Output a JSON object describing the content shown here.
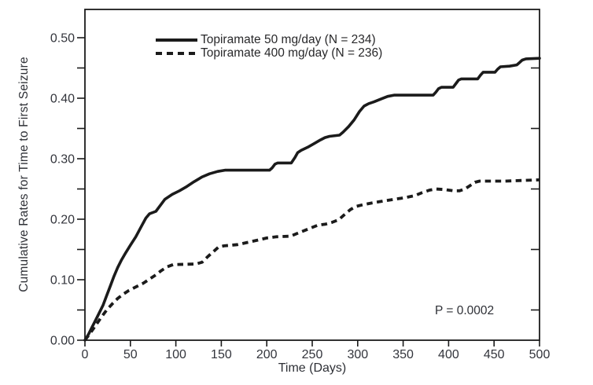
{
  "chart_data": {
    "type": "line",
    "title": "",
    "xlabel": "Time (Days)",
    "ylabel": "Cumulative Rates for Time to First Seizure",
    "xlim": [
      0,
      500
    ],
    "ylim": [
      0.0,
      0.5
    ],
    "x_ticks": [
      0,
      50,
      100,
      150,
      200,
      250,
      300,
      350,
      400,
      450,
      500
    ],
    "y_ticks_major": [
      0.0,
      0.1,
      0.2,
      0.3,
      0.4,
      0.5
    ],
    "y_ticks_minor": [
      0.05,
      0.15,
      0.25,
      0.35,
      0.45
    ],
    "grid": false,
    "frame": "full-box",
    "legend_position": "top-inside-left",
    "line_color": "#1b1b1b",
    "annotation": {
      "text": "P = 0.0002",
      "x_day": 385,
      "y_rate": 0.047
    },
    "series": [
      {
        "name": "Topiramate 50 mg/day (N = 234)",
        "style": "solid",
        "color": "#1b1b1b",
        "points": [
          [
            0,
            0
          ],
          [
            4,
            0.01
          ],
          [
            8,
            0.022
          ],
          [
            12,
            0.034
          ],
          [
            16,
            0.046
          ],
          [
            20,
            0.058
          ],
          [
            24,
            0.074
          ],
          [
            28,
            0.09
          ],
          [
            32,
            0.106
          ],
          [
            36,
            0.12
          ],
          [
            40,
            0.132
          ],
          [
            45,
            0.145
          ],
          [
            50,
            0.157
          ],
          [
            56,
            0.171
          ],
          [
            62,
            0.188
          ],
          [
            67,
            0.202
          ],
          [
            71,
            0.209
          ],
          [
            78,
            0.213
          ],
          [
            82,
            0.221
          ],
          [
            88,
            0.233
          ],
          [
            96,
            0.241
          ],
          [
            104,
            0.247
          ],
          [
            112,
            0.254
          ],
          [
            120,
            0.262
          ],
          [
            129,
            0.27
          ],
          [
            137,
            0.275
          ],
          [
            146,
            0.279
          ],
          [
            154,
            0.281
          ],
          [
            203,
            0.281
          ],
          [
            206,
            0.285
          ],
          [
            209,
            0.291
          ],
          [
            212,
            0.293
          ],
          [
            227,
            0.293
          ],
          [
            231,
            0.302
          ],
          [
            234,
            0.31
          ],
          [
            238,
            0.314
          ],
          [
            245,
            0.319
          ],
          [
            252,
            0.325
          ],
          [
            259,
            0.331
          ],
          [
            264,
            0.335
          ],
          [
            269,
            0.337
          ],
          [
            280,
            0.339
          ],
          [
            284,
            0.344
          ],
          [
            290,
            0.353
          ],
          [
            296,
            0.364
          ],
          [
            302,
            0.378
          ],
          [
            307,
            0.387
          ],
          [
            312,
            0.391
          ],
          [
            318,
            0.394
          ],
          [
            326,
            0.399
          ],
          [
            333,
            0.403
          ],
          [
            340,
            0.405
          ],
          [
            383,
            0.405
          ],
          [
            386,
            0.41
          ],
          [
            389,
            0.416
          ],
          [
            392,
            0.418
          ],
          [
            405,
            0.418
          ],
          [
            408,
            0.424
          ],
          [
            411,
            0.43
          ],
          [
            414,
            0.432
          ],
          [
            432,
            0.432
          ],
          [
            435,
            0.438
          ],
          [
            438,
            0.443
          ],
          [
            451,
            0.443
          ],
          [
            454,
            0.448
          ],
          [
            457,
            0.452
          ],
          [
            467,
            0.453
          ],
          [
            475,
            0.455
          ],
          [
            478,
            0.459
          ],
          [
            481,
            0.463
          ],
          [
            485,
            0.465
          ],
          [
            500,
            0.466
          ]
        ]
      },
      {
        "name": "Topiramate 400 mg/day (N = 236)",
        "style": "dashed",
        "color": "#1b1b1b",
        "points": [
          [
            0,
            0
          ],
          [
            6,
            0.012
          ],
          [
            12,
            0.025
          ],
          [
            18,
            0.038
          ],
          [
            24,
            0.05
          ],
          [
            30,
            0.06
          ],
          [
            36,
            0.069
          ],
          [
            42,
            0.076
          ],
          [
            48,
            0.082
          ],
          [
            56,
            0.088
          ],
          [
            64,
            0.094
          ],
          [
            71,
            0.101
          ],
          [
            78,
            0.108
          ],
          [
            84,
            0.115
          ],
          [
            90,
            0.121
          ],
          [
            97,
            0.125
          ],
          [
            122,
            0.126
          ],
          [
            129,
            0.129
          ],
          [
            135,
            0.138
          ],
          [
            141,
            0.146
          ],
          [
            147,
            0.154
          ],
          [
            153,
            0.156
          ],
          [
            168,
            0.158
          ],
          [
            177,
            0.161
          ],
          [
            189,
            0.165
          ],
          [
            200,
            0.169
          ],
          [
            211,
            0.171
          ],
          [
            226,
            0.172
          ],
          [
            236,
            0.178
          ],
          [
            246,
            0.184
          ],
          [
            256,
            0.19
          ],
          [
            265,
            0.192
          ],
          [
            272,
            0.195
          ],
          [
            279,
            0.199
          ],
          [
            285,
            0.207
          ],
          [
            292,
            0.216
          ],
          [
            298,
            0.221
          ],
          [
            306,
            0.224
          ],
          [
            316,
            0.227
          ],
          [
            328,
            0.23
          ],
          [
            341,
            0.233
          ],
          [
            353,
            0.236
          ],
          [
            363,
            0.239
          ],
          [
            371,
            0.244
          ],
          [
            379,
            0.248
          ],
          [
            386,
            0.25
          ],
          [
            396,
            0.249
          ],
          [
            405,
            0.247
          ],
          [
            412,
            0.247
          ],
          [
            418,
            0.25
          ],
          [
            424,
            0.256
          ],
          [
            429,
            0.261
          ],
          [
            434,
            0.263
          ],
          [
            462,
            0.263
          ],
          [
            480,
            0.264
          ],
          [
            500,
            0.265
          ]
        ]
      }
    ]
  }
}
